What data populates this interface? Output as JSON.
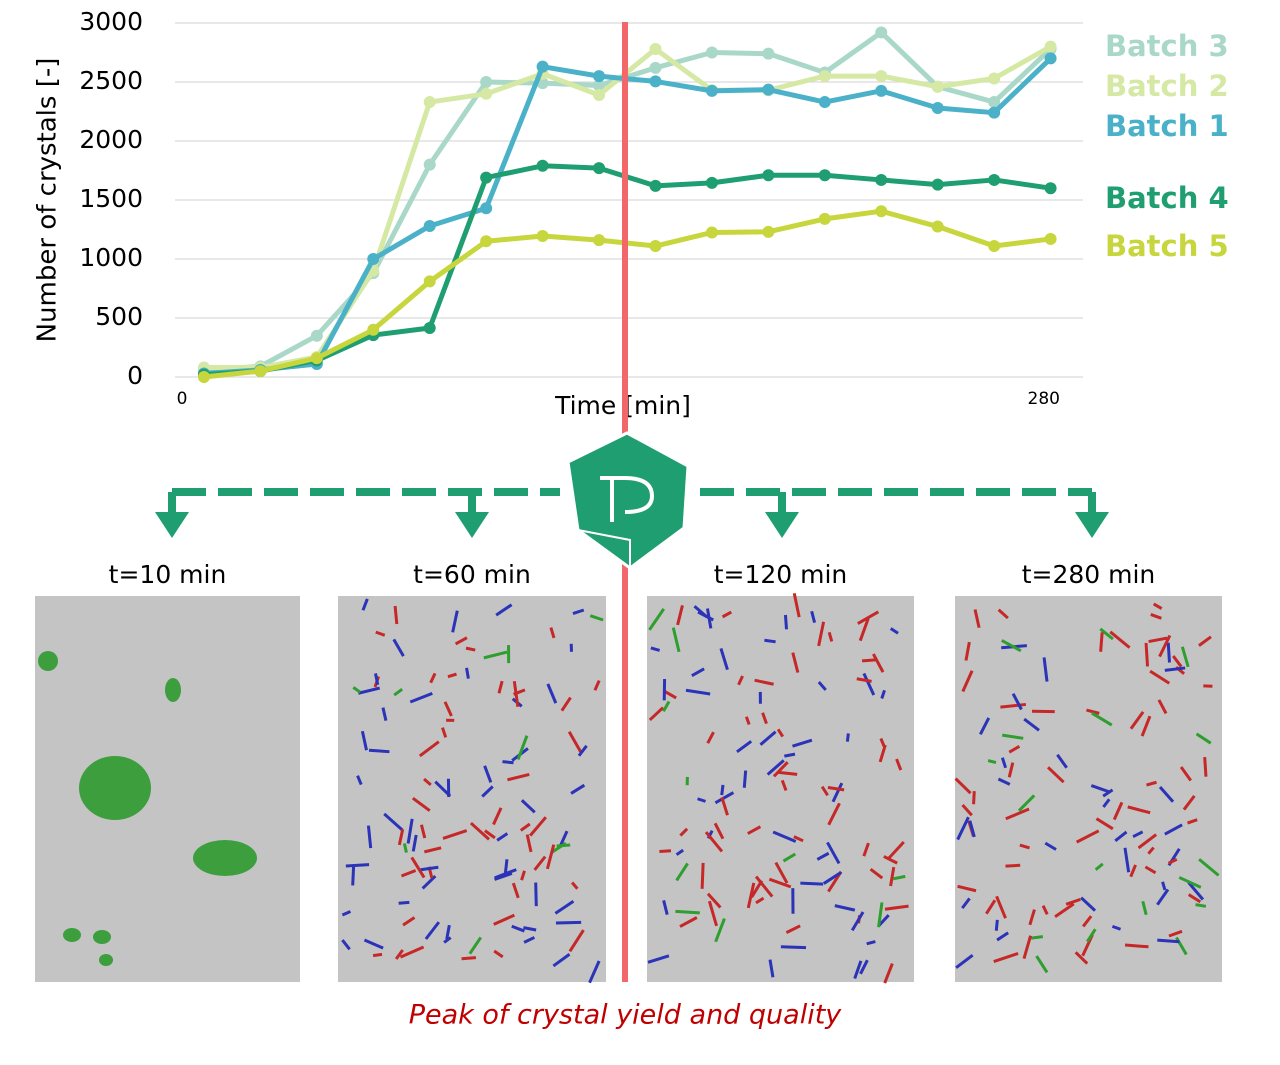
{
  "chart_data": {
    "type": "line",
    "y_label": "Number of crystals [-]",
    "x_label": "Time [min]",
    "x": [
      7,
      25,
      43,
      61,
      79,
      97,
      115,
      133,
      151,
      169,
      187,
      205,
      223,
      241,
      259,
      277
    ],
    "xlim": [
      0,
      280
    ],
    "xticks": [
      0,
      280
    ],
    "ylim": [
      0,
      3000
    ],
    "yticks": [
      0,
      500,
      1000,
      1500,
      2000,
      2500,
      3000
    ],
    "grid": true,
    "series": [
      {
        "name": "Batch 3",
        "color": "#a9d8c9",
        "values": [
          60,
          90,
          350,
          880,
          1800,
          2500,
          2490,
          2470,
          2620,
          2750,
          2740,
          2580,
          2920,
          2460,
          2330,
          2780
        ]
      },
      {
        "name": "Batch 2",
        "color": "#d5e8a4",
        "values": [
          80,
          80,
          170,
          900,
          2330,
          2400,
          2570,
          2390,
          2780,
          2430,
          2430,
          2550,
          2550,
          2460,
          2530,
          2800
        ]
      },
      {
        "name": "Batch 1",
        "color": "#4bb1c9",
        "values": [
          30,
          60,
          110,
          1000,
          1280,
          1430,
          2630,
          2550,
          2505,
          2425,
          2435,
          2330,
          2425,
          2280,
          2240,
          2700
        ]
      },
      {
        "name": "Batch 4",
        "color": "#1f9e72",
        "values": [
          20,
          50,
          140,
          355,
          415,
          1690,
          1790,
          1770,
          1620,
          1645,
          1710,
          1710,
          1670,
          1630,
          1670,
          1600
        ]
      },
      {
        "name": "Batch 5",
        "color": "#c7d63c",
        "values": [
          0,
          50,
          160,
          400,
          810,
          1150,
          1195,
          1160,
          1110,
          1225,
          1230,
          1340,
          1405,
          1275,
          1110,
          1170
        ]
      }
    ]
  },
  "panels": [
    {
      "label": "t=10 min"
    },
    {
      "label": "t=60 min"
    },
    {
      "label": "t=120 min"
    },
    {
      "label": "t=280 min"
    }
  ],
  "caption": "Peak of crystal yield and quality"
}
